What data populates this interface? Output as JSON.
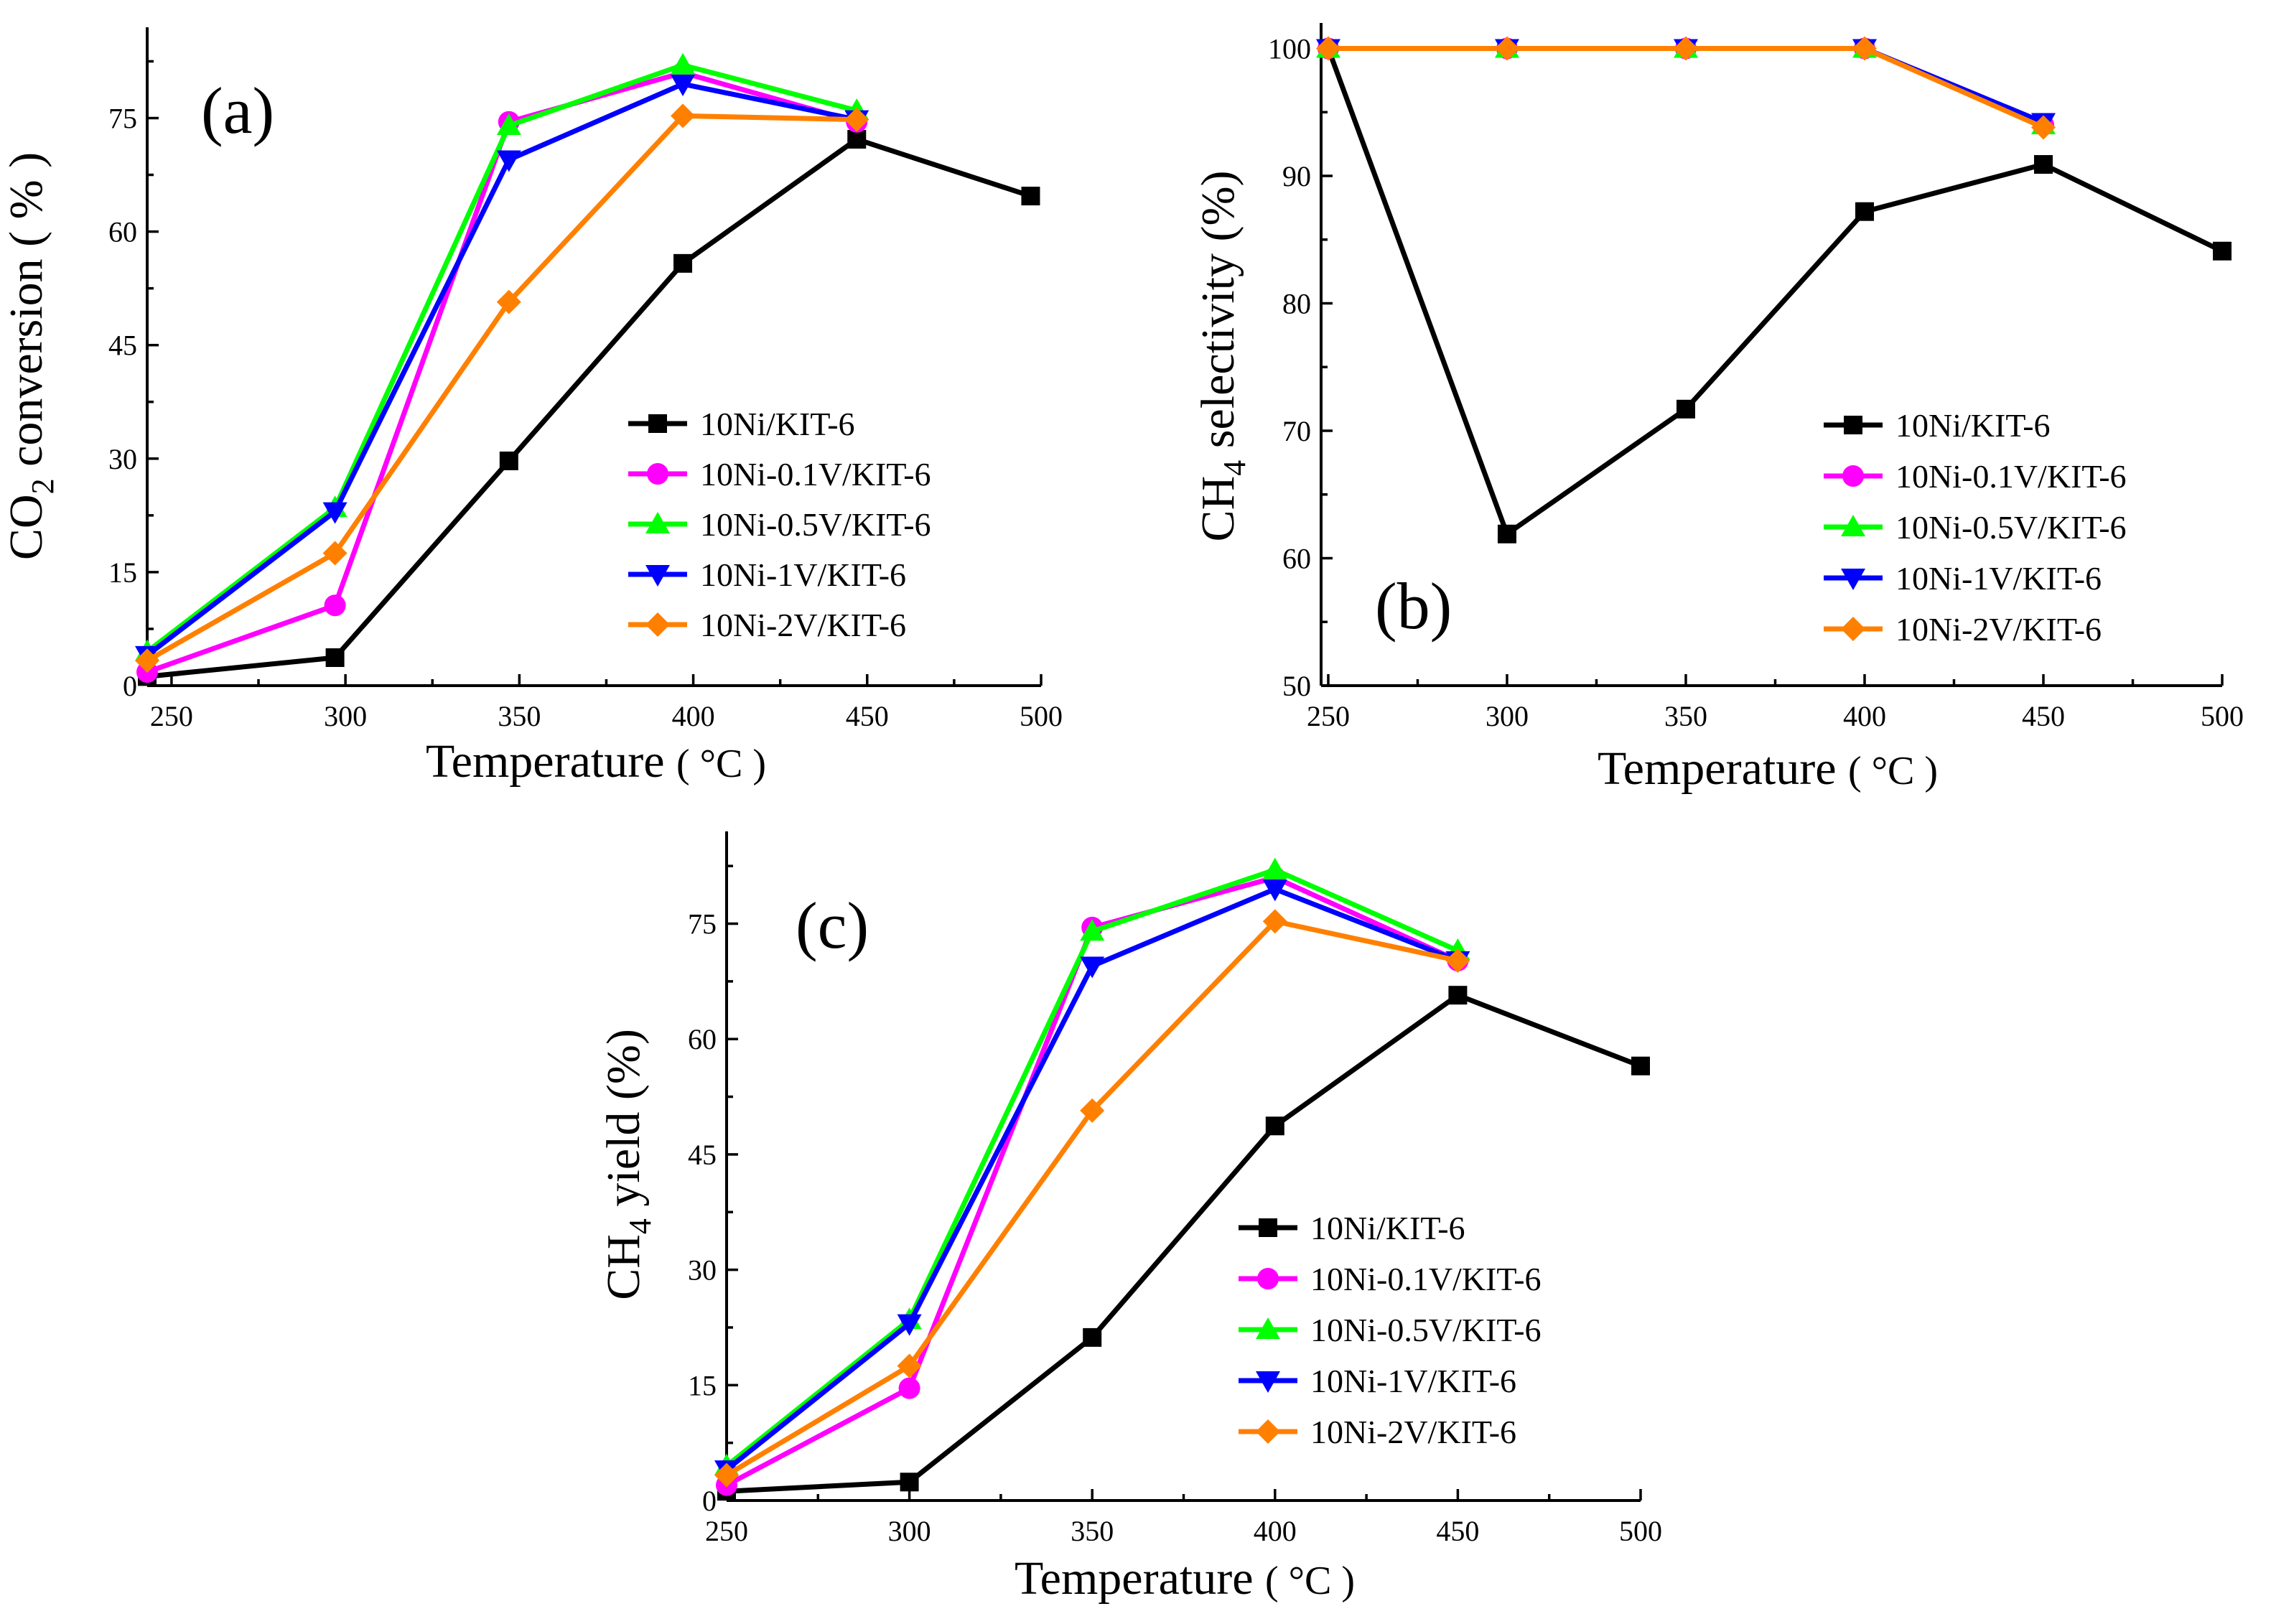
{
  "chart_data": [
    {
      "type": "line",
      "panel": "(a)",
      "xlabel": "Temperature",
      "xlabel_unit": "( °C )",
      "ylabel_prefix": "CO",
      "ylabel_sub": "2",
      "ylabel_suffix": " conversion ( % )",
      "xlim": [
        243,
        500
      ],
      "ylim": [
        0,
        87
      ],
      "xticks": [
        "250",
        "300",
        "350",
        "400",
        "450",
        "500"
      ],
      "yticks": [
        "0",
        "15",
        "30",
        "45",
        "60",
        "75"
      ],
      "legend_position": "center-right",
      "series": [
        {
          "name": "10Ni/KIT-6",
          "color": "#000000",
          "marker": "square",
          "x": [
            243,
            297,
            347,
            397,
            447,
            497
          ],
          "y": [
            1.2,
            3.7,
            29.7,
            55.8,
            72.2,
            64.7
          ]
        },
        {
          "name": "10Ni-0.1V/KIT-6",
          "color": "#ff00ff",
          "marker": "circle",
          "x": [
            243,
            297,
            347,
            397,
            447
          ],
          "y": [
            1.8,
            10.6,
            74.5,
            81.0,
            74.5
          ]
        },
        {
          "name": "10Ni-0.5V/KIT-6",
          "color": "#00ff00",
          "marker": "triangle-up",
          "x": [
            243,
            297,
            347,
            397,
            447
          ],
          "y": [
            4.5,
            23.5,
            74.0,
            82.0,
            76.0
          ]
        },
        {
          "name": "10Ni-1V/KIT-6",
          "color": "#0000ff",
          "marker": "triangle-down",
          "x": [
            243,
            297,
            347,
            397,
            447
          ],
          "y": [
            4.0,
            23.0,
            69.5,
            79.5,
            74.8
          ]
        },
        {
          "name": "10Ni-2V/KIT-6",
          "color": "#ff8000",
          "marker": "diamond",
          "x": [
            243,
            297,
            347,
            397,
            447
          ],
          "y": [
            3.3,
            17.5,
            50.7,
            75.3,
            74.8
          ]
        }
      ]
    },
    {
      "type": "line",
      "panel": "(b)",
      "xlabel": "Temperature",
      "xlabel_unit": "( °C )",
      "ylabel_prefix": "CH",
      "ylabel_sub": "4",
      "ylabel_suffix": " selectivity (%)",
      "xlim": [
        248,
        500
      ],
      "ylim": [
        50,
        102
      ],
      "xticks": [
        "250",
        "300",
        "350",
        "400",
        "450",
        "500"
      ],
      "yticks": [
        "50",
        "60",
        "70",
        "80",
        "90",
        "100"
      ],
      "legend_position": "lower-right",
      "series": [
        {
          "name": "10Ni/KIT-6",
          "color": "#000000",
          "marker": "square",
          "x": [
            250,
            300,
            350,
            400,
            450,
            500
          ],
          "y": [
            100,
            61.9,
            71.7,
            87.2,
            90.9,
            84.1
          ]
        },
        {
          "name": "10Ni-0.1V/KIT-6",
          "color": "#ff00ff",
          "marker": "circle",
          "x": [
            250,
            300,
            350,
            400,
            450
          ],
          "y": [
            100,
            100,
            100,
            100,
            94.0
          ]
        },
        {
          "name": "10Ni-0.5V/KIT-6",
          "color": "#00ff00",
          "marker": "triangle-up",
          "x": [
            250,
            300,
            350,
            400,
            450
          ],
          "y": [
            100,
            100,
            100,
            100,
            94.0
          ]
        },
        {
          "name": "10Ni-1V/KIT-6",
          "color": "#0000ff",
          "marker": "triangle-down",
          "x": [
            250,
            300,
            350,
            400,
            450
          ],
          "y": [
            100,
            100,
            100,
            100,
            94.2
          ]
        },
        {
          "name": "10Ni-2V/KIT-6",
          "color": "#ff8000",
          "marker": "diamond",
          "x": [
            250,
            300,
            350,
            400,
            450
          ],
          "y": [
            100,
            100,
            100,
            100,
            93.8
          ]
        }
      ]
    },
    {
      "type": "line",
      "panel": "(c)",
      "xlabel": "Temperature",
      "xlabel_unit": "( °C )",
      "ylabel_prefix": "CH",
      "ylabel_sub": "4",
      "ylabel_suffix": " yield (%)",
      "xlim": [
        250,
        500
      ],
      "ylim": [
        0,
        87
      ],
      "xticks": [
        "250",
        "300",
        "350",
        "400",
        "450",
        "500"
      ],
      "yticks": [
        "0",
        "15",
        "30",
        "45",
        "60",
        "75"
      ],
      "legend_position": "center-right",
      "series": [
        {
          "name": "10Ni/KIT-6",
          "color": "#000000",
          "marker": "square",
          "x": [
            250,
            300,
            350,
            400,
            450,
            500
          ],
          "y": [
            1.2,
            2.4,
            21.2,
            48.7,
            65.7,
            56.5
          ]
        },
        {
          "name": "10Ni-0.1V/KIT-6",
          "color": "#ff00ff",
          "marker": "circle",
          "x": [
            250,
            300,
            350,
            400,
            450
          ],
          "y": [
            2.0,
            14.6,
            74.5,
            81.0,
            70.2
          ]
        },
        {
          "name": "10Ni-0.5V/KIT-6",
          "color": "#00ff00",
          "marker": "triangle-up",
          "x": [
            250,
            300,
            350,
            400,
            450
          ],
          "y": [
            4.5,
            23.5,
            74.0,
            82.0,
            71.5
          ]
        },
        {
          "name": "10Ni-1V/KIT-6",
          "color": "#0000ff",
          "marker": "triangle-down",
          "x": [
            250,
            300,
            350,
            400,
            450
          ],
          "y": [
            4.0,
            23.0,
            69.5,
            79.5,
            70.2
          ]
        },
        {
          "name": "10Ni-2V/KIT-6",
          "color": "#ff8000",
          "marker": "diamond",
          "x": [
            250,
            300,
            350,
            400,
            450
          ],
          "y": [
            3.3,
            17.5,
            50.7,
            75.3,
            70.2
          ]
        }
      ]
    }
  ]
}
